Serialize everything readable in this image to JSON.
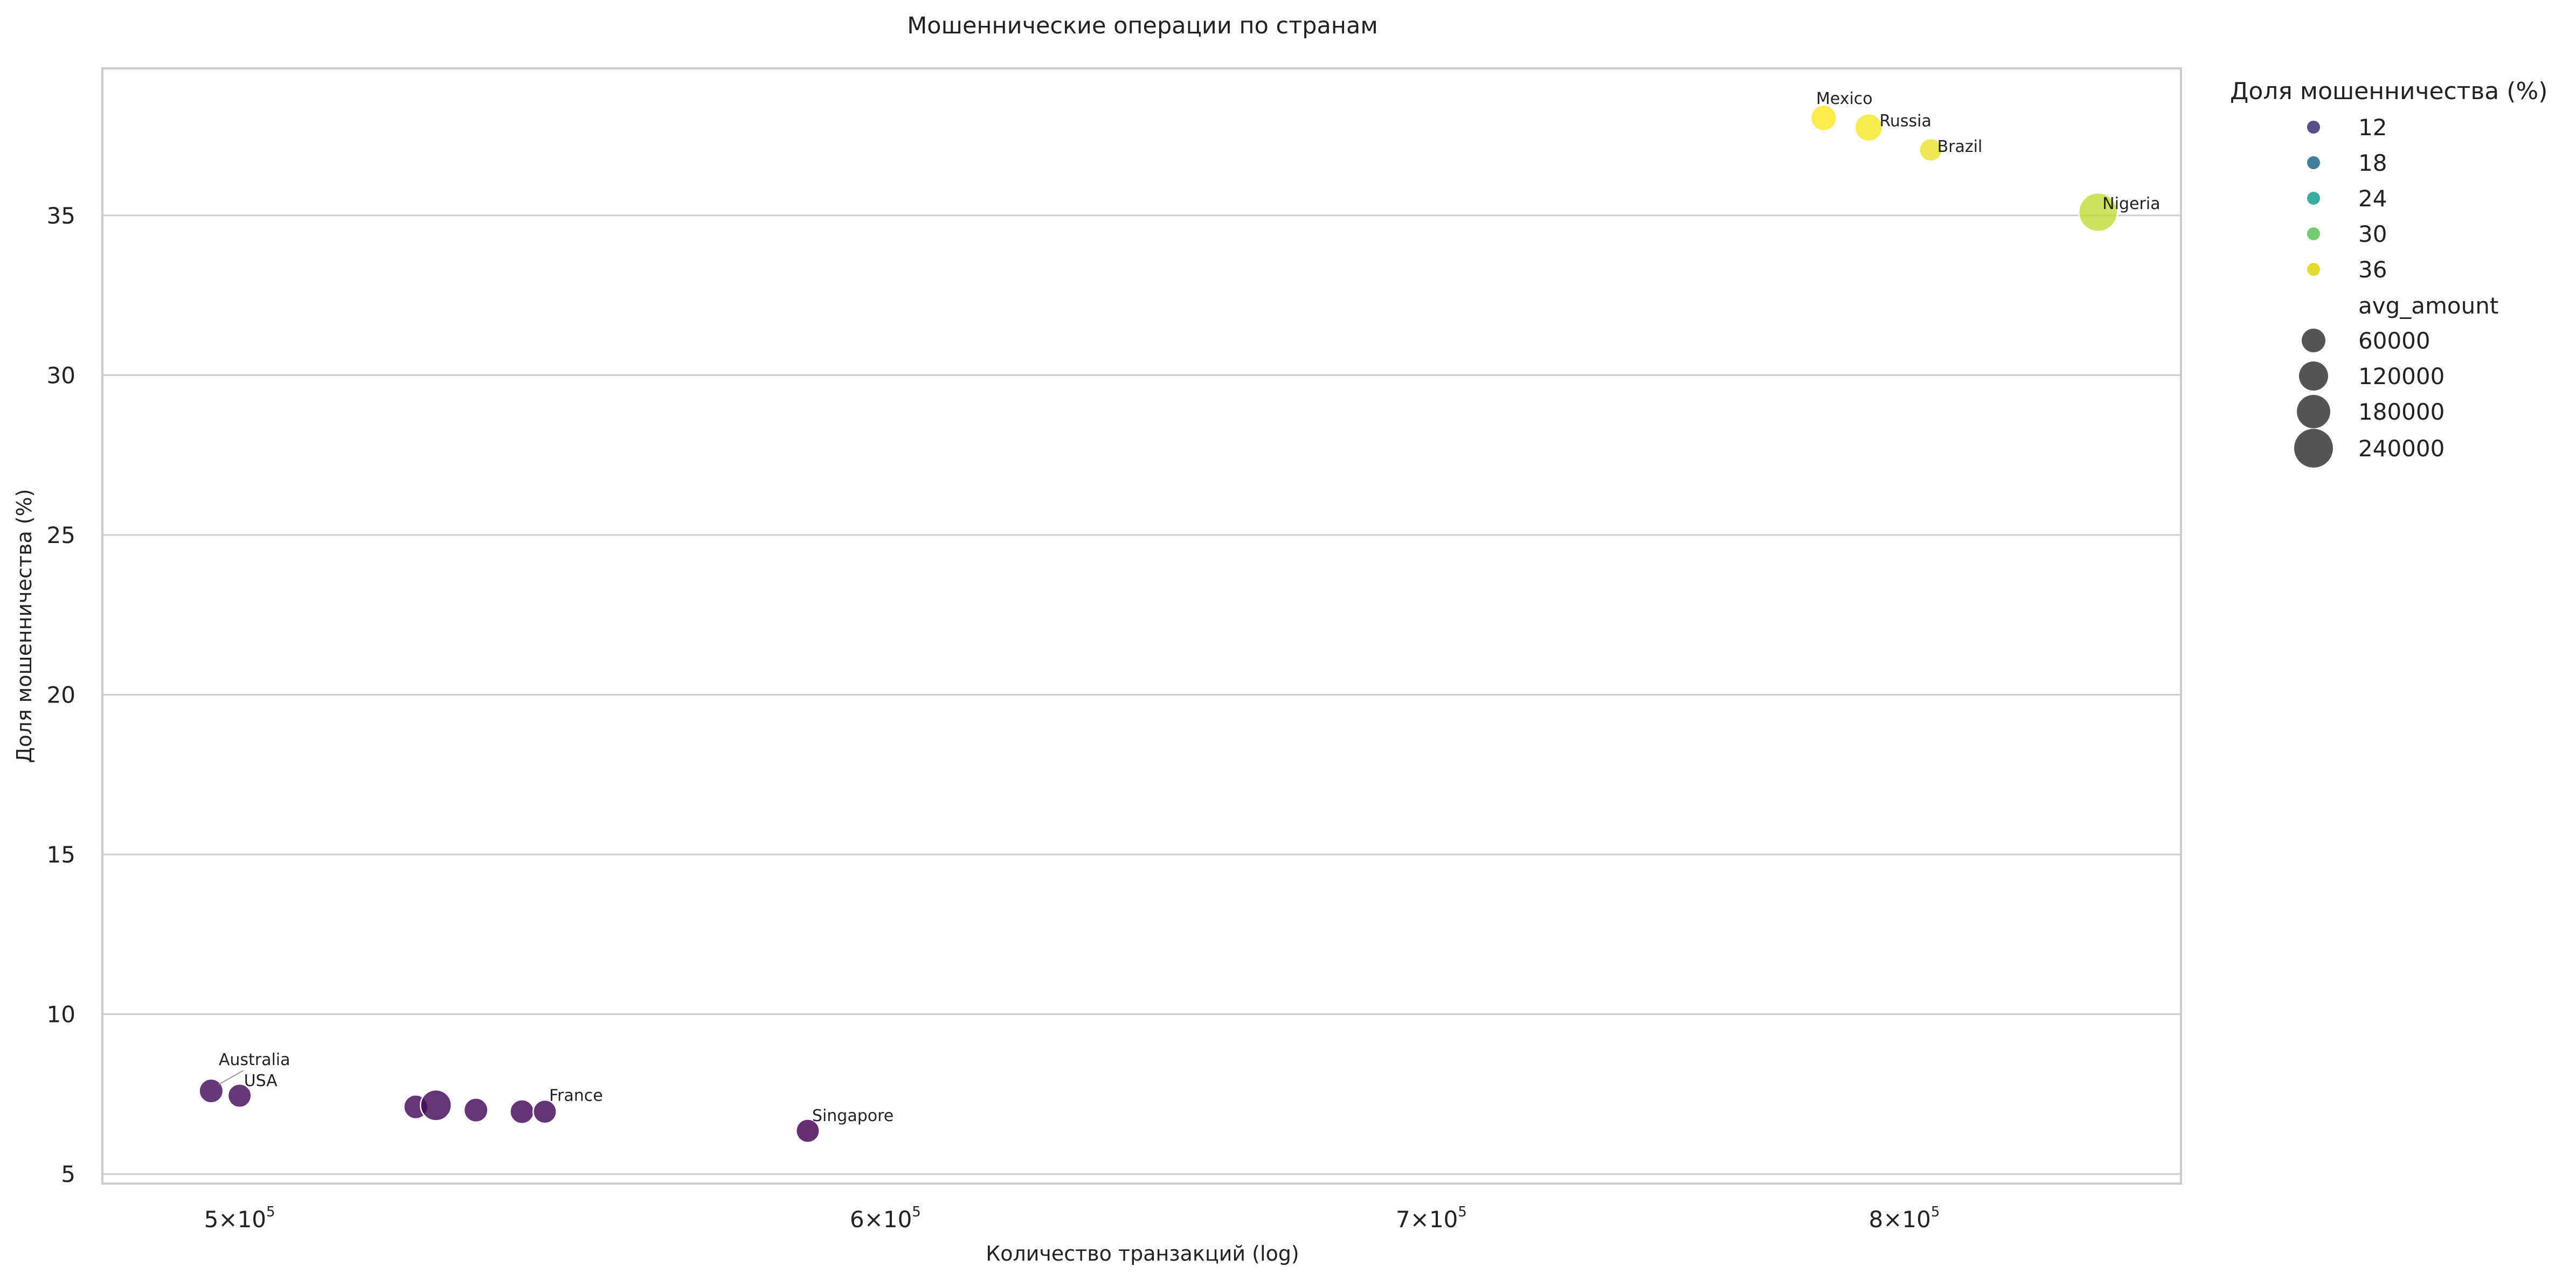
{
  "chart_data": {
    "type": "scatter",
    "title": "Мошеннические операции по странам",
    "xlabel": "Количество транзакций (log)",
    "ylabel": "Доля мошенничества (%)",
    "x_scale": "log",
    "xlim": [
      481000,
      865000
    ],
    "ylim": [
      4.7,
      39.6
    ],
    "grid": "y",
    "x_ticks": [
      {
        "value": 500000,
        "base": "5",
        "exp": "5"
      },
      {
        "value": 600000,
        "base": "6",
        "exp": "5"
      },
      {
        "value": 700000,
        "base": "7",
        "exp": "5"
      },
      {
        "value": 800000,
        "base": "8",
        "exp": "5"
      }
    ],
    "x_tick_times": "×",
    "x_tick_power": "10",
    "y_ticks": [
      5,
      10,
      15,
      20,
      25,
      30,
      35
    ],
    "points": [
      {
        "label": "Australia",
        "x": 496000,
        "y": 7.6,
        "fraud_rate": 7.6,
        "avg_amount": 40000
      },
      {
        "label": "USA",
        "x": 500000,
        "y": 7.45,
        "fraud_rate": 7.45,
        "avg_amount": 35000
      },
      {
        "label": "",
        "x": 525500,
        "y": 7.1,
        "fraud_rate": 7.1,
        "avg_amount": 40000
      },
      {
        "label": "",
        "x": 528500,
        "y": 7.15,
        "fraud_rate": 7.15,
        "avg_amount": 120000
      },
      {
        "label": "",
        "x": 534500,
        "y": 7.0,
        "fraud_rate": 7.0,
        "avg_amount": 40000
      },
      {
        "label": "",
        "x": 541500,
        "y": 6.95,
        "fraud_rate": 6.95,
        "avg_amount": 40000
      },
      {
        "label": "France",
        "x": 545000,
        "y": 6.95,
        "fraud_rate": 6.95,
        "avg_amount": 35000
      },
      {
        "label": "Singapore",
        "x": 587000,
        "y": 6.35,
        "fraud_rate": 6.35,
        "avg_amount": 35000
      },
      {
        "label": "Mexico",
        "x": 782000,
        "y": 38.05,
        "fraud_rate": 38.05,
        "avg_amount": 55000
      },
      {
        "label": "Russia",
        "x": 792000,
        "y": 37.75,
        "fraud_rate": 37.75,
        "avg_amount": 75000
      },
      {
        "label": "Brazil",
        "x": 806000,
        "y": 37.05,
        "fraud_rate": 37.05,
        "avg_amount": 30000
      },
      {
        "label": "Nigeria",
        "x": 845000,
        "y": 35.1,
        "fraud_rate": 35.1,
        "avg_amount": 260000
      }
    ],
    "legend": {
      "placement": "outside-right",
      "hue_title": "Доля мошенничества (%)",
      "hue_entries": [
        {
          "label": "12",
          "color": "#5b4d86"
        },
        {
          "label": "18",
          "color": "#3f8098"
        },
        {
          "label": "24",
          "color": "#3bada0"
        },
        {
          "label": "30",
          "color": "#73cd70"
        },
        {
          "label": "36",
          "color": "#e1de2f"
        }
      ],
      "size_title": "avg_amount",
      "size_entries": [
        {
          "label": "60000",
          "value": 60000
        },
        {
          "label": "120000",
          "value": 120000
        },
        {
          "label": "180000",
          "value": 180000
        },
        {
          "label": "240000",
          "value": 240000
        }
      ]
    },
    "colorscale": "viridis",
    "hue_range": [
      6.35,
      38.05
    ]
  }
}
